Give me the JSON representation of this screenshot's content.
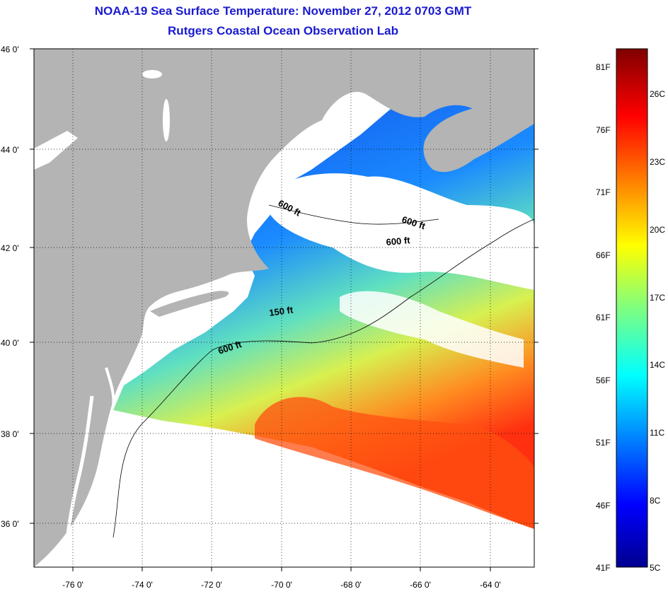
{
  "title": "NOAA-19 Sea Surface Temperature:  November 27, 2012 0703 GMT",
  "subtitle": "Rutgers Coastal Ocean Observation Lab",
  "lat_labels": [
    "46 0'",
    "44 0'",
    "42 0'",
    "40 0'",
    "38 0'",
    "36 0'"
  ],
  "lon_labels": [
    "-76 0'",
    "-74 0'",
    "-72 0'",
    "-70 0'",
    "-68 0'",
    "-66 0'",
    "-64 0'"
  ],
  "contour_labels": [
    "600 ft",
    "600 ft",
    "600 ft",
    "150 ft",
    "600 ft"
  ],
  "colorbar": {
    "fahrenheit": [
      "81F",
      "76F",
      "71F",
      "66F",
      "61F",
      "56F",
      "51F",
      "46F",
      "41F"
    ],
    "celsius": [
      "26C",
      "23C",
      "20C",
      "17C",
      "14C",
      "11C",
      "8C",
      "5C"
    ]
  },
  "colors": {
    "land": "#b4b4b4",
    "title": "#1a1ad0",
    "cloud": "#ffffff"
  }
}
